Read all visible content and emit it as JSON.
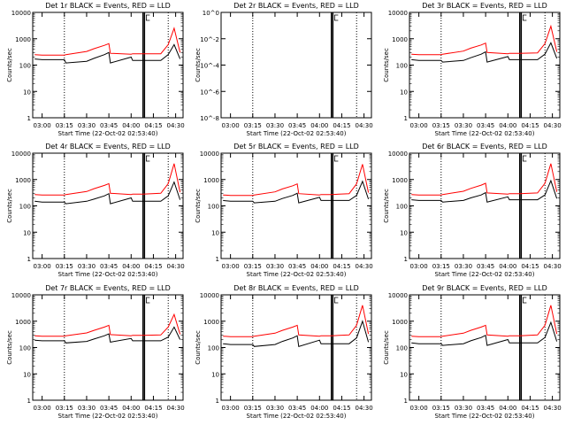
{
  "shared": {
    "xlabel": "Start Time (22-Oct-02 02:53:40)",
    "ylabel": "Counts/sec",
    "x_ticks": [
      "03:00",
      "03:15",
      "03:30",
      "03:45",
      "04:00",
      "04:15",
      "04:30"
    ],
    "y_ticks_log": [
      "1",
      "10",
      "100",
      "1000",
      "10000"
    ],
    "y_ticks_small": [
      "10^0",
      "10^-2",
      "10^-4",
      "10^-6",
      "10^-8"
    ],
    "colors": {
      "events": "#000000",
      "lld": "#ff0000",
      "axes": "#000000"
    }
  },
  "chart_data": [
    {
      "title": "Det 1r BLACK = Events, RED = LLD",
      "type": "line",
      "scale": "log",
      "ylim": [
        1,
        10000
      ],
      "xlim": [
        "02:53:40",
        "04:35"
      ],
      "series": [
        {
          "name": "Events",
          "color": "#000000",
          "x": [
            "02:55",
            "03:00",
            "03:15",
            "03:16",
            "03:30",
            "03:35",
            "03:42",
            "03:45",
            "03:46",
            "04:00",
            "04:01",
            "04:08",
            "04:20",
            "04:25",
            "04:29",
            "04:33"
          ],
          "y": [
            170,
            160,
            160,
            120,
            140,
            180,
            250,
            300,
            120,
            200,
            150,
            150,
            150,
            250,
            600,
            170
          ]
        },
        {
          "name": "LLD",
          "color": "#ff0000",
          "x": [
            "02:55",
            "03:00",
            "03:15",
            "03:16",
            "03:30",
            "03:35",
            "03:42",
            "03:45",
            "03:46",
            "04:00",
            "04:01",
            "04:08",
            "04:20",
            "04:25",
            "04:29",
            "04:33"
          ],
          "y": [
            250,
            240,
            240,
            250,
            330,
            420,
            560,
            650,
            280,
            260,
            270,
            270,
            270,
            600,
            2500,
            300
          ]
        }
      ]
    },
    {
      "title": "Det 2r BLACK = Events, RED = LLD",
      "type": "line",
      "scale": "log_small",
      "ylim": [
        1,
        1e-08
      ],
      "xlim": [
        "02:53:40",
        "04:35"
      ],
      "series": []
    },
    {
      "title": "Det 3r BLACK = Events, RED = LLD",
      "type": "line",
      "scale": "log",
      "ylim": [
        1,
        10000
      ],
      "xlim": [
        "02:53:40",
        "04:35"
      ],
      "series": [
        {
          "name": "Events",
          "color": "#000000",
          "x": [
            "02:55",
            "03:00",
            "03:15",
            "03:16",
            "03:30",
            "03:35",
            "03:42",
            "03:45",
            "03:46",
            "04:00",
            "04:01",
            "04:08",
            "04:20",
            "04:25",
            "04:29",
            "04:33"
          ],
          "y": [
            160,
            150,
            150,
            130,
            150,
            190,
            260,
            320,
            130,
            210,
            160,
            160,
            160,
            260,
            700,
            180
          ]
        },
        {
          "name": "LLD",
          "color": "#ff0000",
          "x": [
            "02:55",
            "03:00",
            "03:15",
            "03:16",
            "03:30",
            "03:35",
            "03:42",
            "03:45",
            "03:46",
            "04:00",
            "04:01",
            "04:08",
            "04:20",
            "04:25",
            "04:29",
            "04:33"
          ],
          "y": [
            260,
            250,
            250,
            260,
            340,
            440,
            580,
            680,
            300,
            270,
            280,
            280,
            290,
            650,
            3000,
            320
          ]
        }
      ]
    },
    {
      "title": "Det 4r BLACK = Events, RED = LLD",
      "type": "line",
      "scale": "log",
      "ylim": [
        1,
        10000
      ],
      "xlim": [
        "02:53:40",
        "04:35"
      ],
      "series": [
        {
          "name": "Events",
          "color": "#000000",
          "x": [
            "02:55",
            "03:00",
            "03:15",
            "03:16",
            "03:30",
            "03:35",
            "03:42",
            "03:45",
            "03:46",
            "04:00",
            "04:01",
            "04:08",
            "04:20",
            "04:25",
            "04:29",
            "04:33"
          ],
          "y": [
            150,
            140,
            140,
            120,
            150,
            180,
            240,
            290,
            120,
            200,
            150,
            150,
            150,
            240,
            800,
            170
          ]
        },
        {
          "name": "LLD",
          "color": "#ff0000",
          "x": [
            "02:55",
            "03:00",
            "03:15",
            "03:16",
            "03:30",
            "03:35",
            "03:42",
            "03:45",
            "03:46",
            "04:00",
            "04:01",
            "04:08",
            "04:20",
            "04:25",
            "04:29",
            "04:33"
          ],
          "y": [
            270,
            260,
            260,
            270,
            350,
            450,
            600,
            700,
            300,
            270,
            280,
            280,
            300,
            700,
            4000,
            330
          ]
        }
      ]
    },
    {
      "title": "Det 5r BLACK = Events, RED = LLD",
      "type": "line",
      "scale": "log",
      "ylim": [
        1,
        10000
      ],
      "xlim": [
        "02:53:40",
        "04:35"
      ],
      "series": [
        {
          "name": "Events",
          "color": "#000000",
          "x": [
            "02:55",
            "03:00",
            "03:15",
            "03:16",
            "03:30",
            "03:35",
            "03:42",
            "03:45",
            "03:46",
            "04:00",
            "04:01",
            "04:08",
            "04:20",
            "04:25",
            "04:29",
            "04:33"
          ],
          "y": [
            160,
            150,
            150,
            130,
            150,
            190,
            250,
            300,
            130,
            210,
            160,
            160,
            160,
            250,
            850,
            180
          ]
        },
        {
          "name": "LLD",
          "color": "#ff0000",
          "x": [
            "02:55",
            "03:00",
            "03:15",
            "03:16",
            "03:30",
            "03:35",
            "03:42",
            "03:45",
            "03:46",
            "04:00",
            "04:01",
            "04:08",
            "04:20",
            "04:25",
            "04:29",
            "04:33"
          ],
          "y": [
            260,
            250,
            250,
            260,
            340,
            440,
            580,
            680,
            290,
            260,
            270,
            270,
            290,
            680,
            3800,
            320
          ]
        }
      ]
    },
    {
      "title": "Det 6r BLACK = Events, RED = LLD",
      "type": "line",
      "scale": "log",
      "ylim": [
        1,
        10000
      ],
      "xlim": [
        "02:53:40",
        "04:35"
      ],
      "series": [
        {
          "name": "Events",
          "color": "#000000",
          "x": [
            "02:55",
            "03:00",
            "03:15",
            "03:16",
            "03:30",
            "03:35",
            "03:42",
            "03:45",
            "03:46",
            "04:00",
            "04:01",
            "04:08",
            "04:20",
            "04:25",
            "04:29",
            "04:33"
          ],
          "y": [
            170,
            160,
            160,
            140,
            160,
            200,
            260,
            320,
            140,
            220,
            170,
            170,
            170,
            260,
            900,
            190
          ]
        },
        {
          "name": "LLD",
          "color": "#ff0000",
          "x": [
            "02:55",
            "03:00",
            "03:15",
            "03:16",
            "03:30",
            "03:35",
            "03:42",
            "03:45",
            "03:46",
            "04:00",
            "04:01",
            "04:08",
            "04:20",
            "04:25",
            "04:29",
            "04:33"
          ],
          "y": [
            270,
            260,
            260,
            270,
            360,
            460,
            610,
            720,
            310,
            280,
            290,
            290,
            310,
            720,
            4000,
            340
          ]
        }
      ]
    },
    {
      "title": "Det 7r BLACK = Events, RED = LLD",
      "type": "line",
      "scale": "log",
      "ylim": [
        1,
        10000
      ],
      "xlim": [
        "02:53:40",
        "04:35"
      ],
      "series": [
        {
          "name": "Events",
          "color": "#000000",
          "x": [
            "02:55",
            "03:00",
            "03:15",
            "03:16",
            "03:30",
            "03:35",
            "03:42",
            "03:45",
            "03:46",
            "04:00",
            "04:01",
            "04:08",
            "04:20",
            "04:25",
            "04:29",
            "04:33"
          ],
          "y": [
            190,
            180,
            180,
            150,
            170,
            210,
            280,
            330,
            160,
            220,
            180,
            180,
            180,
            250,
            600,
            200
          ]
        },
        {
          "name": "LLD",
          "color": "#ff0000",
          "x": [
            "02:55",
            "03:00",
            "03:15",
            "03:16",
            "03:30",
            "03:35",
            "03:42",
            "03:45",
            "03:46",
            "04:00",
            "04:01",
            "04:08",
            "04:20",
            "04:25",
            "04:29",
            "04:33"
          ],
          "y": [
            280,
            270,
            270,
            280,
            360,
            450,
            600,
            700,
            310,
            280,
            290,
            290,
            300,
            600,
            1800,
            320
          ]
        }
      ]
    },
    {
      "title": "Det 8r BLACK = Events, RED = LLD",
      "type": "line",
      "scale": "log",
      "ylim": [
        1,
        10000
      ],
      "xlim": [
        "02:53:40",
        "04:35"
      ],
      "series": [
        {
          "name": "Events",
          "color": "#000000",
          "x": [
            "02:55",
            "03:00",
            "03:15",
            "03:16",
            "03:30",
            "03:35",
            "03:42",
            "03:45",
            "03:46",
            "04:00",
            "04:01",
            "04:08",
            "04:20",
            "04:25",
            "04:29",
            "04:33"
          ],
          "y": [
            140,
            130,
            130,
            110,
            130,
            170,
            230,
            280,
            110,
            190,
            140,
            140,
            140,
            230,
            1000,
            160
          ]
        },
        {
          "name": "LLD",
          "color": "#ff0000",
          "x": [
            "02:55",
            "03:00",
            "03:15",
            "03:16",
            "03:30",
            "03:35",
            "03:42",
            "03:45",
            "03:46",
            "04:00",
            "04:01",
            "04:08",
            "04:20",
            "04:25",
            "04:29",
            "04:33"
          ],
          "y": [
            270,
            260,
            260,
            270,
            350,
            450,
            600,
            700,
            300,
            270,
            280,
            280,
            300,
            700,
            4000,
            330
          ]
        }
      ]
    },
    {
      "title": "Det 9r BLACK = Events, RED = LLD",
      "type": "line",
      "scale": "log",
      "ylim": [
        1,
        10000
      ],
      "xlim": [
        "02:53:40",
        "04:35"
      ],
      "series": [
        {
          "name": "Events",
          "color": "#000000",
          "x": [
            "02:55",
            "03:00",
            "03:15",
            "03:16",
            "03:30",
            "03:35",
            "03:42",
            "03:45",
            "03:46",
            "04:00",
            "04:01",
            "04:08",
            "04:20",
            "04:25",
            "04:29",
            "04:33"
          ],
          "y": [
            150,
            140,
            140,
            120,
            140,
            180,
            240,
            290,
            120,
            200,
            150,
            150,
            150,
            240,
            900,
            170
          ]
        },
        {
          "name": "LLD",
          "color": "#ff0000",
          "x": [
            "02:55",
            "03:00",
            "03:15",
            "03:16",
            "03:30",
            "03:35",
            "03:42",
            "03:45",
            "03:46",
            "04:00",
            "04:01",
            "04:08",
            "04:20",
            "04:25",
            "04:29",
            "04:33"
          ],
          "y": [
            270,
            260,
            260,
            270,
            350,
            450,
            600,
            700,
            300,
            270,
            280,
            280,
            300,
            700,
            4000,
            330
          ]
        }
      ]
    }
  ]
}
